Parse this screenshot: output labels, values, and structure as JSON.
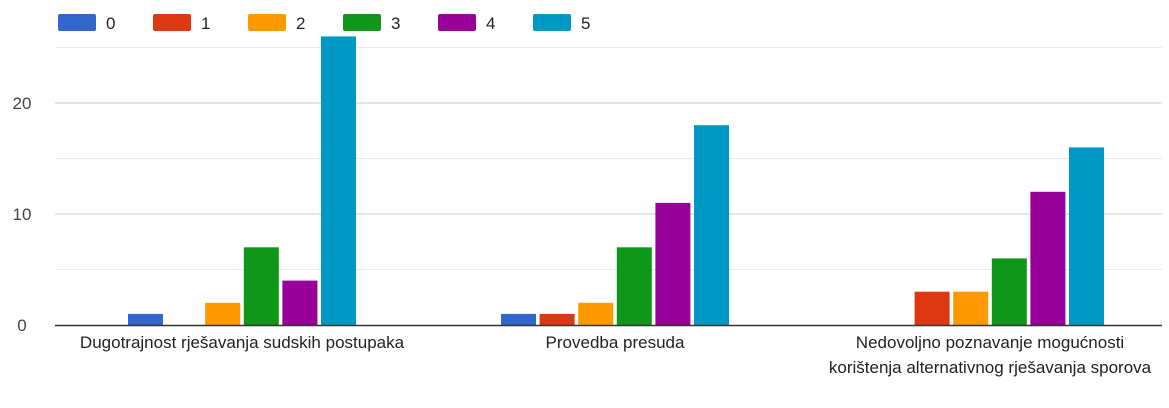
{
  "chart_data": {
    "type": "bar",
    "categories": [
      "Dugotrajnost rješavanja sudskih postupaka",
      "Provedba presuda",
      "Nedovoljno poznavanje mogućnosti korištenja alternativnog rješavanja sporova"
    ],
    "series": [
      {
        "name": "0",
        "color": "#3366cc",
        "values": [
          1,
          1,
          0
        ]
      },
      {
        "name": "1",
        "color": "#dc3912",
        "values": [
          0,
          1,
          3
        ]
      },
      {
        "name": "2",
        "color": "#ff9900",
        "values": [
          2,
          2,
          3
        ]
      },
      {
        "name": "3",
        "color": "#109618",
        "values": [
          7,
          7,
          6
        ]
      },
      {
        "name": "4",
        "color": "#990099",
        "values": [
          4,
          11,
          12
        ]
      },
      {
        "name": "5",
        "color": "#0099c6",
        "values": [
          26,
          18,
          16
        ]
      }
    ],
    "yticks": [
      "0",
      "10",
      "20"
    ],
    "ylim": [
      0,
      26
    ],
    "grid": true,
    "legend": "top-left"
  }
}
